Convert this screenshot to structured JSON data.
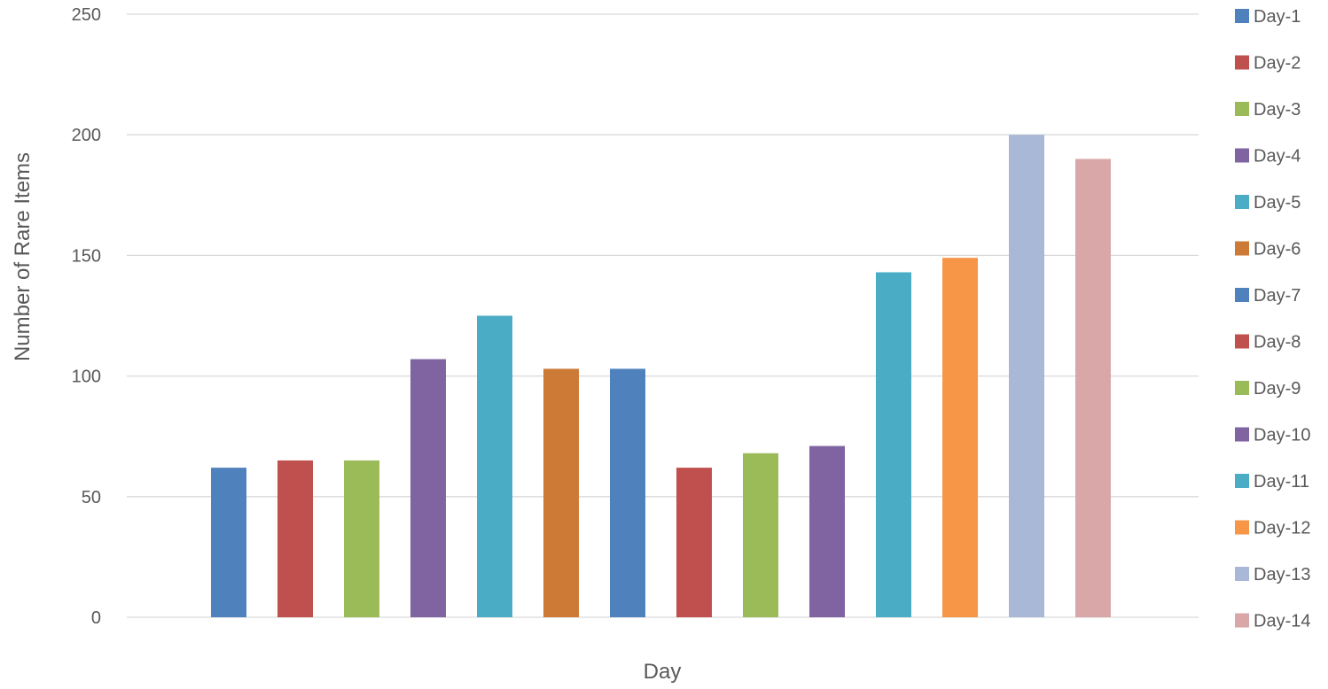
{
  "chart_data": {
    "type": "bar",
    "title": "",
    "xlabel": "Day",
    "ylabel": "Number of Rare Items",
    "ylim": [
      0,
      250
    ],
    "yticks": [
      0,
      50,
      100,
      150,
      200,
      250
    ],
    "grid": true,
    "legend_position": "right",
    "series": [
      {
        "name": "Day-1",
        "value": 62,
        "color": "#4F81BD"
      },
      {
        "name": "Day-2",
        "value": 65,
        "color": "#C0504D"
      },
      {
        "name": "Day-3",
        "value": 65,
        "color": "#9BBB59"
      },
      {
        "name": "Day-4",
        "value": 107,
        "color": "#8064A2"
      },
      {
        "name": "Day-5",
        "value": 125,
        "color": "#4BACC6"
      },
      {
        "name": "Day-6",
        "value": 103,
        "color": "#CC7A36"
      },
      {
        "name": "Day-7",
        "value": 103,
        "color": "#4F81BD"
      },
      {
        "name": "Day-8",
        "value": 62,
        "color": "#C0504D"
      },
      {
        "name": "Day-9",
        "value": 68,
        "color": "#9BBB59"
      },
      {
        "name": "Day-10",
        "value": 71,
        "color": "#8064A2"
      },
      {
        "name": "Day-11",
        "value": 143,
        "color": "#4BACC6"
      },
      {
        "name": "Day-12",
        "value": 149,
        "color": "#F79646"
      },
      {
        "name": "Day-13",
        "value": 200,
        "color": "#A9B8D6"
      },
      {
        "name": "Day-14",
        "value": 190,
        "color": "#D9A7A7"
      }
    ]
  }
}
